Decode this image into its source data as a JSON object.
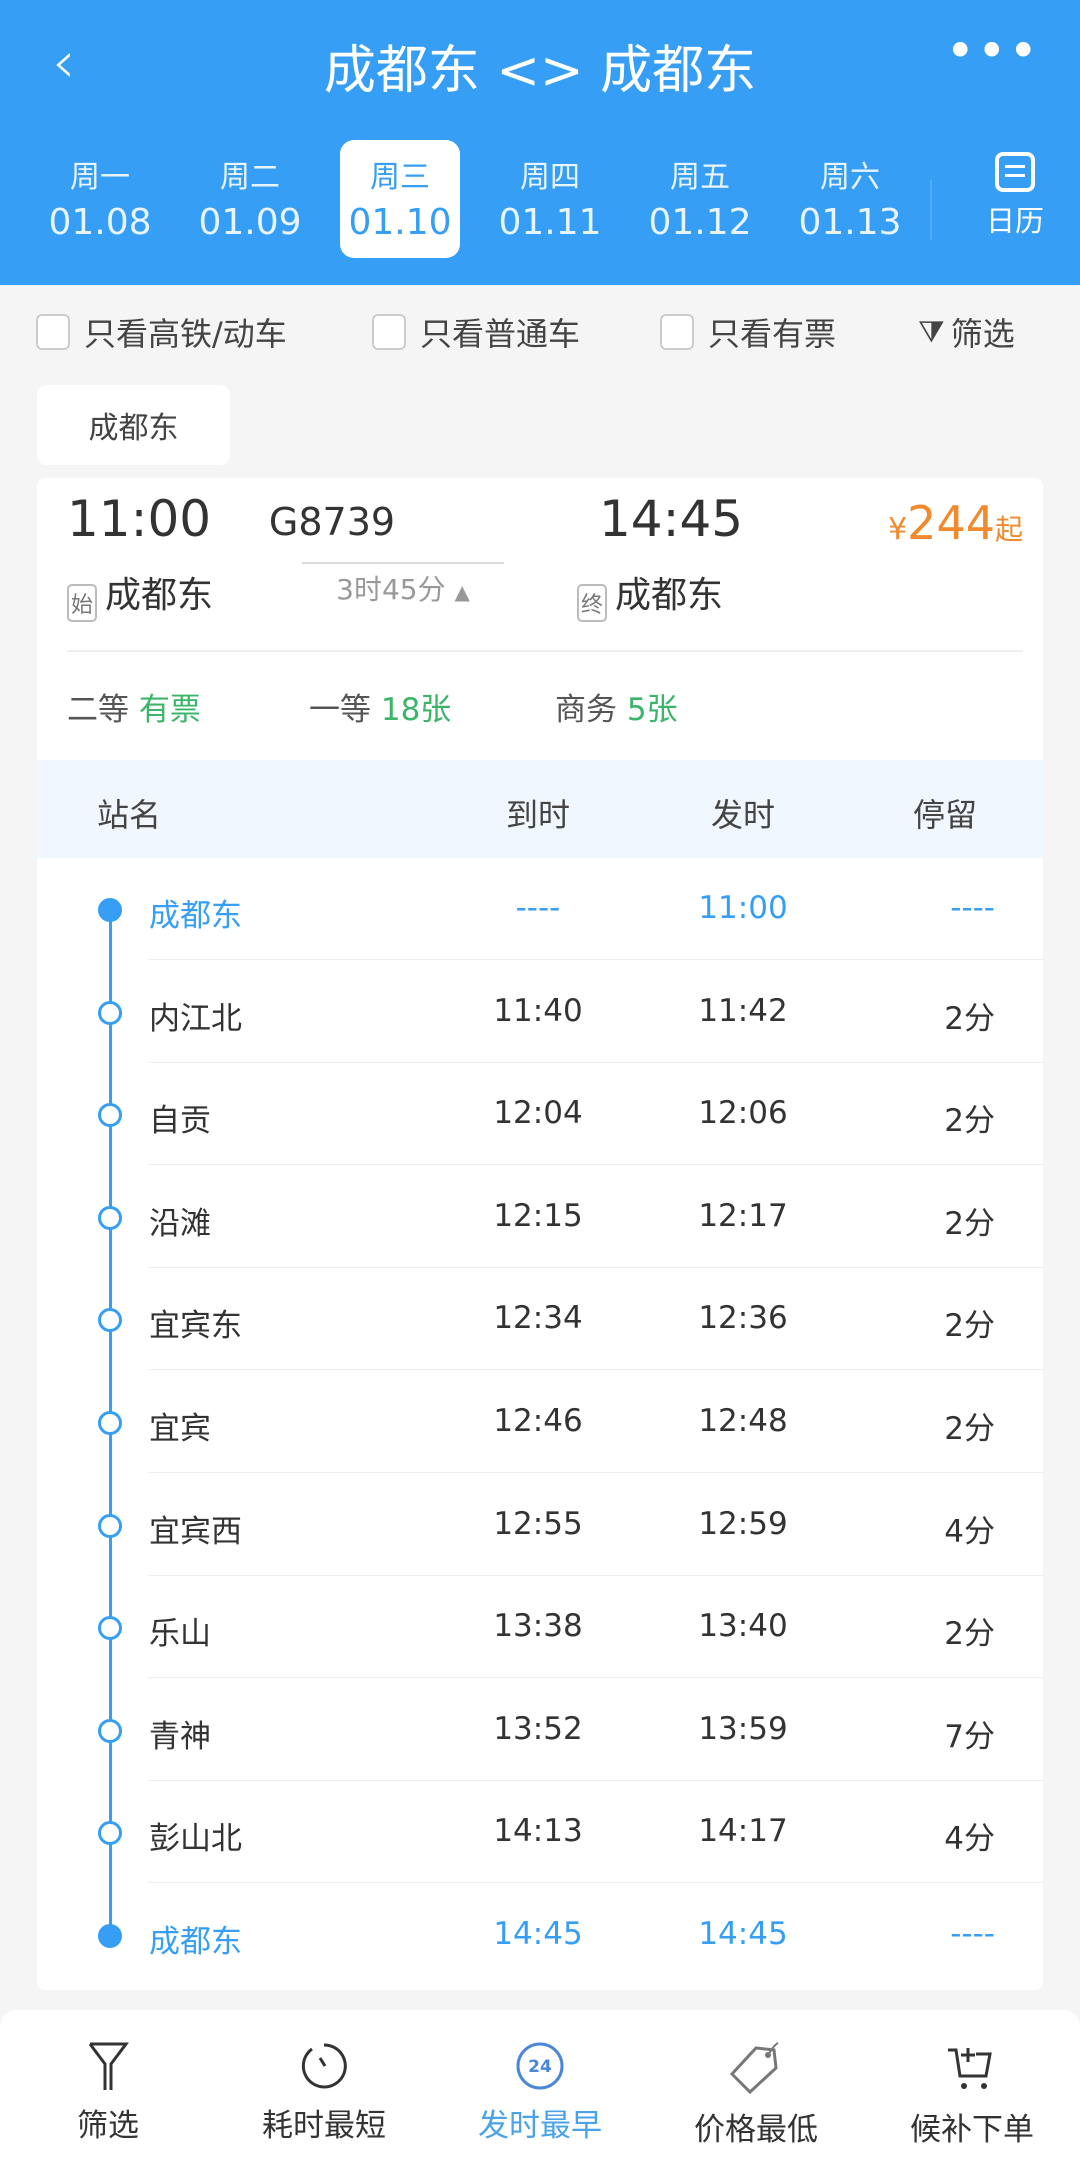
{
  "header": {
    "back_icon": "chevron-left-icon",
    "title": "成都东 <> 成都东",
    "more_icon": "more-icon"
  },
  "dates": [
    {
      "weekday": "周一",
      "date": "01.08"
    },
    {
      "weekday": "周二",
      "date": "01.09"
    },
    {
      "weekday": "周三",
      "date": "01.10",
      "selected": true
    },
    {
      "weekday": "周四",
      "date": "01.11"
    },
    {
      "weekday": "周五",
      "date": "01.12"
    },
    {
      "weekday": "周六",
      "date": "01.13"
    }
  ],
  "calendar_label": "日历",
  "filters": {
    "high_speed": "只看高铁/动车",
    "normal": "只看普通车",
    "available": "只看有票",
    "filter": "筛选"
  },
  "station_tab": "成都东",
  "train": {
    "depart_time": "11:00",
    "number": "G8739",
    "arrive_time": "14:45",
    "price_symbol": "¥",
    "price": "244",
    "price_suffix": "起",
    "start_tag": "始",
    "from": "成都东",
    "duration": "3时45分",
    "end_tag": "终",
    "to": "成都东",
    "seats": [
      {
        "class": "二等",
        "avail": "有票"
      },
      {
        "class": "一等",
        "avail": "18张"
      },
      {
        "class": "商务",
        "avail": "5张"
      }
    ]
  },
  "table": {
    "headers": [
      "站名",
      "到时",
      "发时",
      "停留"
    ],
    "rows": [
      [
        "成都东",
        "----",
        "11:00",
        "----"
      ],
      [
        "内江北",
        "11:40",
        "11:42",
        "2分"
      ],
      [
        "自贡",
        "12:04",
        "12:06",
        "2分"
      ],
      [
        "沿滩",
        "12:15",
        "12:17",
        "2分"
      ],
      [
        "宜宾东",
        "12:34",
        "12:36",
        "2分"
      ],
      [
        "宜宾",
        "12:46",
        "12:48",
        "2分"
      ],
      [
        "宜宾西",
        "12:55",
        "12:59",
        "4分"
      ],
      [
        "乐山",
        "13:38",
        "13:40",
        "2分"
      ],
      [
        "青神",
        "13:52",
        "13:59",
        "7分"
      ],
      [
        "彭山北",
        "14:13",
        "14:17",
        "4分"
      ],
      [
        "成都东",
        "14:45",
        "14:45",
        "----"
      ]
    ]
  },
  "bottom": [
    {
      "label": "筛选",
      "icon": "filter-icon"
    },
    {
      "label": "耗时最短",
      "icon": "timer-icon"
    },
    {
      "label": "发时最早",
      "icon": "clock-24-icon",
      "active": true,
      "badge": "24"
    },
    {
      "label": "价格最低",
      "icon": "price-tag-icon"
    },
    {
      "label": "候补下单",
      "icon": "cart-add-icon"
    }
  ],
  "colors": {
    "primary": "#369ff5",
    "price": "#f08a2c",
    "available": "#3cb46a"
  }
}
